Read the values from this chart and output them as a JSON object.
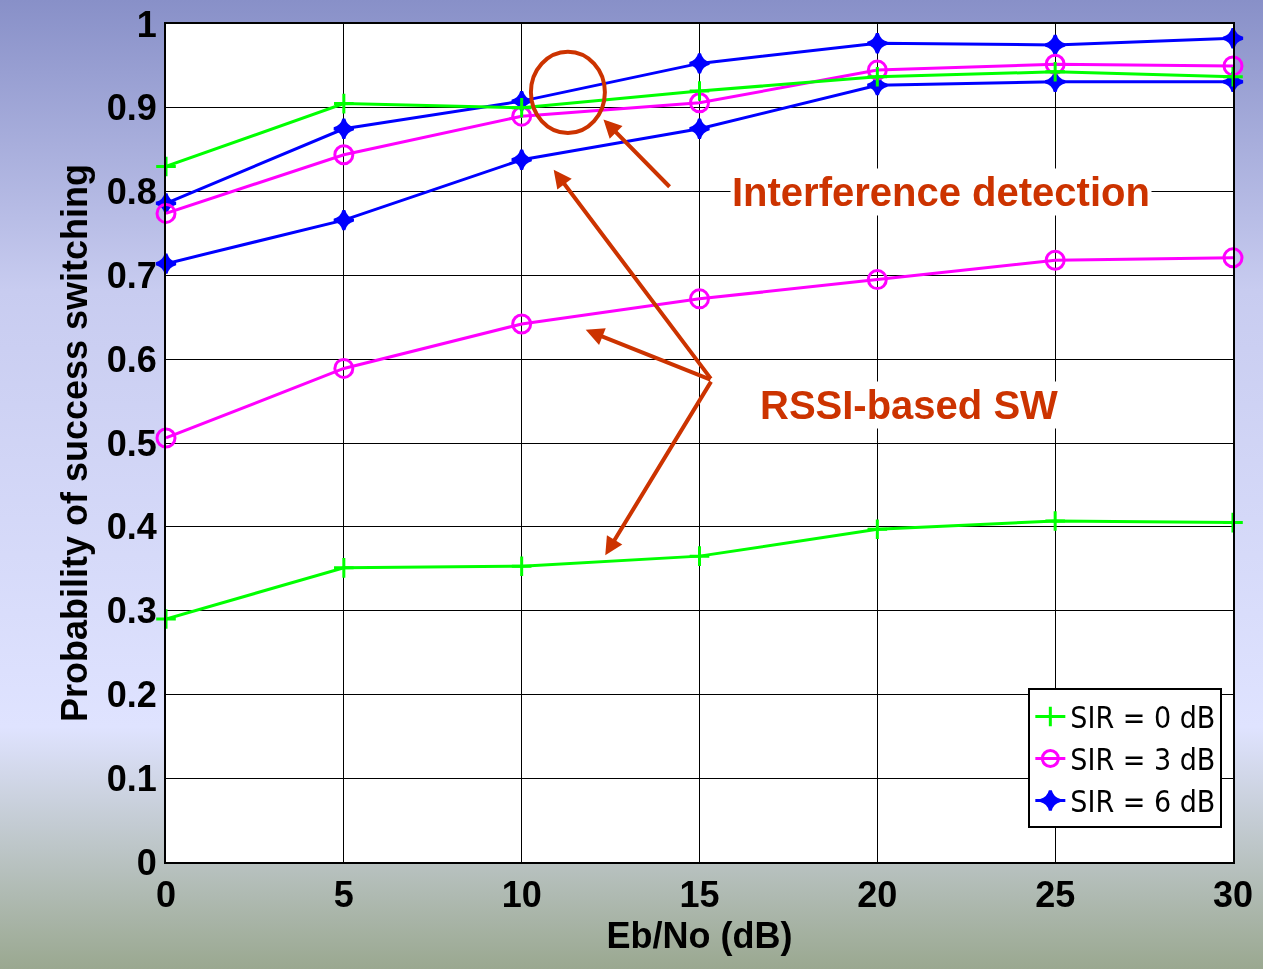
{
  "chart_data": {
    "type": "line",
    "xlabel": "Eb/No (dB)",
    "ylabel": "Probability of success switching",
    "x": [
      0,
      5,
      10,
      15,
      20,
      25,
      30
    ],
    "xlim": [
      0,
      30
    ],
    "xticks": [
      0,
      5,
      10,
      15,
      20,
      25,
      30
    ],
    "ylim": [
      0,
      1
    ],
    "yticks": [
      0,
      0.1,
      0.2,
      0.3,
      0.4,
      0.5,
      0.6,
      0.7,
      0.8,
      0.9,
      1
    ],
    "grid": true,
    "legend": "bottom right",
    "line_style": "solid",
    "series": [
      {
        "name": "SIR = 0 dB",
        "color": "#00ff00",
        "marker": "cross",
        "values": [
          0.83,
          0.905,
          0.9,
          0.92,
          0.937,
          0.943,
          0.937
        ]
      },
      {
        "name": "SIR = 3 dB",
        "color": "#ff00ff",
        "marker": "circle",
        "values": [
          0.774,
          0.844,
          0.89,
          0.906,
          0.945,
          0.952,
          0.95
        ]
      },
      {
        "name": "SIR = 6 dB",
        "color": "#0000ff",
        "marker": "diamond",
        "values": [
          0.786,
          0.875,
          0.908,
          0.953,
          0.977,
          0.975,
          0.983
        ]
      },
      {
        "color": "#0000ff",
        "marker": "diamond",
        "values": [
          0.714,
          0.766,
          0.838,
          0.875,
          0.927,
          0.931,
          0.931
        ]
      },
      {
        "color": "#ff00ff",
        "marker": "circle",
        "values": [
          0.506,
          0.589,
          0.642,
          0.672,
          0.695,
          0.718,
          0.721
        ]
      },
      {
        "color": "#00ff00",
        "marker": "cross",
        "values": [
          0.29,
          0.351,
          0.353,
          0.365,
          0.397,
          0.407,
          0.405
        ]
      }
    ],
    "annotations": [
      "Interference detection",
      "RSSI-based SW"
    ]
  }
}
